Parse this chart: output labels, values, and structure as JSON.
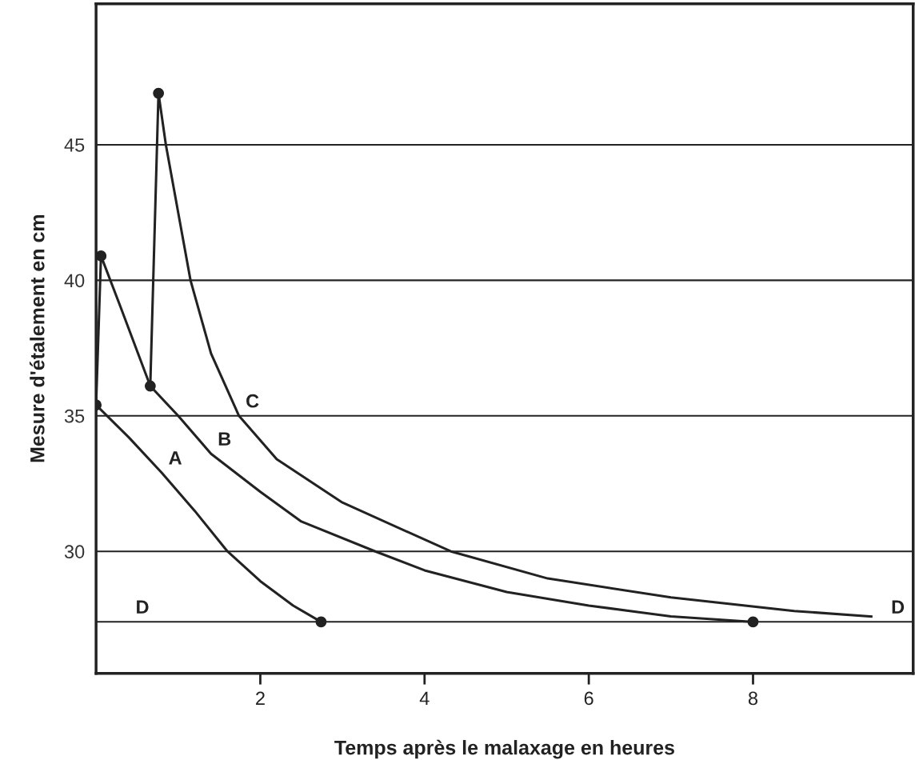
{
  "chart_data": {
    "type": "line",
    "xlabel": "Temps après le malaxage en heures",
    "ylabel": "Mesure d'étalement en cm",
    "series": [
      {
        "color": "#222222",
        "x": [
          0,
          0.4,
          0.8,
          1.2,
          1.6,
          2.0,
          2.4,
          2.74
        ],
        "values": [
          35.4,
          34.2,
          32.9,
          31.5,
          30.0,
          28.9,
          28.0,
          27.4
        ]
      },
      {
        "color": "#222222",
        "x": [
          0,
          0.06,
          0.3,
          0.66,
          1.0,
          1.4,
          2.0,
          2.5,
          3.4,
          4.0,
          5.0,
          6.0,
          7.0,
          8.0
        ],
        "values": [
          35.4,
          40.9,
          39.0,
          36.1,
          35.0,
          33.6,
          32.2,
          31.1,
          30.0,
          29.3,
          28.5,
          28.0,
          27.6,
          27.4
        ]
      },
      {
        "color": "#222222",
        "x": [
          0.66,
          0.76,
          0.85,
          1.0,
          1.15,
          1.4,
          1.74,
          2.2,
          3.0,
          4.32,
          5.5,
          7.0,
          8.5,
          9.44
        ],
        "values": [
          36.1,
          46.9,
          45.0,
          42.5,
          40.0,
          37.3,
          35.0,
          33.4,
          31.8,
          30.0,
          29.0,
          28.3,
          27.8,
          27.6
        ]
      },
      {
        "type": "scatter",
        "marker": "circle",
        "color": "#222222",
        "x": [
          0,
          0.06,
          0.66,
          0.76,
          2.74,
          8.0
        ],
        "values": [
          35.4,
          40.9,
          36.1,
          46.9,
          27.4,
          27.4
        ]
      }
    ],
    "marker": "none",
    "line_style": "solid",
    "xlim": [
      0,
      9.95
    ],
    "xticks": [
      2,
      4,
      6,
      8
    ],
    "ylim": [
      25.5,
      50.2
    ],
    "yticks": [
      30,
      35,
      40,
      45
    ],
    "grid": "y",
    "ref_lines": [
      {
        "axis": "y",
        "value": 27.4,
        "color": "#222222"
      }
    ],
    "annotations": [
      {
        "text": "A",
        "x": 0.8,
        "y": 32.9
      },
      {
        "text": "B",
        "x": 1.4,
        "y": 33.6
      },
      {
        "text": "C",
        "x": 1.74,
        "y": 35.0
      },
      {
        "text": "D",
        "x": 0.4,
        "y": 27.4
      },
      {
        "text": "D",
        "x": 9.6,
        "y": 27.4
      }
    ]
  }
}
